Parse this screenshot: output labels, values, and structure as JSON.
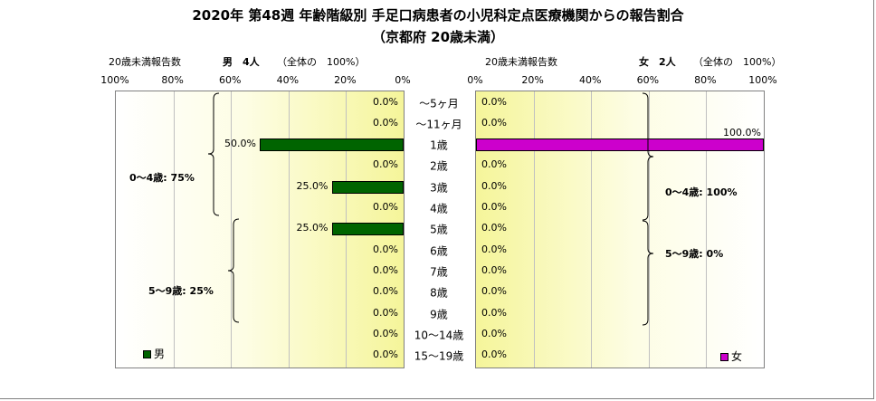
{
  "title_line1": "2020年 第48週 年齢階級別 手足口病患者の小児科定点医療機関からの報告割合",
  "title_line2": "（京都府 20歳未満）",
  "left_panel": {
    "caption": "20歳未満報告数",
    "sex_total": "男　4人",
    "note": "（全体の　100%）",
    "ticks": [
      "100%",
      "80%",
      "60%",
      "40%",
      "20%",
      "0%"
    ],
    "legend": "男",
    "color": "#006400"
  },
  "right_panel": {
    "caption": "20歳未満報告数",
    "sex_total": "女　2人",
    "note": "（全体の　100%）",
    "ticks": [
      "0%",
      "20%",
      "40%",
      "60%",
      "80%",
      "100%"
    ],
    "legend": "女",
    "color": "#cc00cc"
  },
  "chart_data": {
    "type": "bar",
    "categories": [
      "～5ヶ月",
      "～11ヶ月",
      "1歳",
      "2歳",
      "3歳",
      "4歳",
      "5歳",
      "6歳",
      "7歳",
      "8歳",
      "9歳",
      "10～14歳",
      "15～19歳"
    ],
    "series": [
      {
        "name": "男",
        "values": [
          0,
          0,
          50,
          0,
          25,
          0,
          25,
          0,
          0,
          0,
          0,
          0,
          0
        ],
        "labels": [
          "0.0%",
          "0.0%",
          "50.0%",
          "0.0%",
          "25.0%",
          "0.0%",
          "25.0%",
          "0.0%",
          "0.0%",
          "0.0%",
          "0.0%",
          "0.0%",
          "0.0%"
        ]
      },
      {
        "name": "女",
        "values": [
          0,
          0,
          100,
          0,
          0,
          0,
          0,
          0,
          0,
          0,
          0,
          0,
          0
        ],
        "labels": [
          "0.0%",
          "0.0%",
          "100.0%",
          "0.0%",
          "0.0%",
          "0.0%",
          "0.0%",
          "0.0%",
          "0.0%",
          "0.0%",
          "0.0%",
          "0.0%",
          "0.0%"
        ]
      }
    ],
    "xlim": [
      0,
      100
    ],
    "grid": true,
    "group_annotations": {
      "male": [
        "0～4歳: 75%",
        "5～9歳: 25%"
      ],
      "female": [
        "0～4歳: 100%",
        "5～9歳: 0%"
      ]
    }
  }
}
